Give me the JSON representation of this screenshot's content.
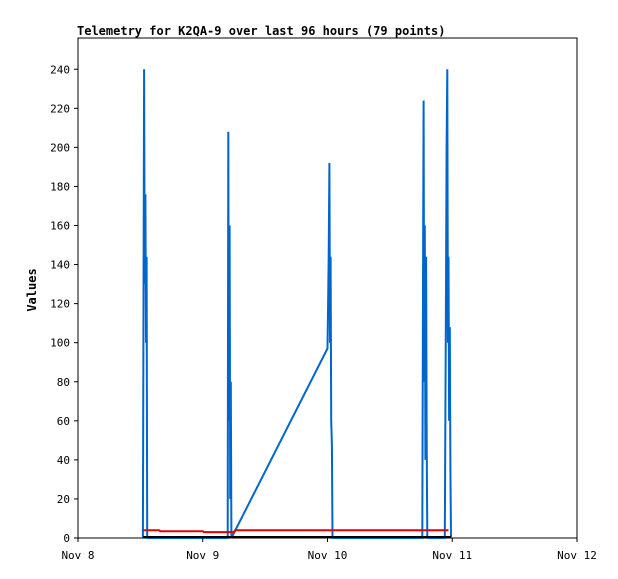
{
  "chart_data": {
    "type": "line",
    "title": "Telemetry for K2QA-9 over last 96 hours (79 points)",
    "xlabel": "",
    "ylabel": "Values",
    "x_ticks": [
      "Nov 8",
      "Nov 9",
      "Nov 10",
      "Nov 11",
      "Nov 12"
    ],
    "y_ticks": [
      0,
      20,
      40,
      60,
      80,
      100,
      120,
      140,
      160,
      180,
      200,
      220,
      240
    ],
    "xlim": [
      0,
      4
    ],
    "ylim": [
      0,
      256
    ],
    "grid": false,
    "legend": "none",
    "series": [
      {
        "color": "#0066cc",
        "points": [
          [
            0.52,
            0
          ],
          [
            0.525,
            120
          ],
          [
            0.53,
            240
          ],
          [
            0.535,
            130
          ],
          [
            0.54,
            176
          ],
          [
            0.545,
            100
          ],
          [
            0.55,
            144
          ],
          [
            0.555,
            0
          ],
          [
            1.2,
            0
          ],
          [
            1.205,
            208
          ],
          [
            1.21,
            60
          ],
          [
            1.215,
            160
          ],
          [
            1.22,
            20
          ],
          [
            1.225,
            80
          ],
          [
            1.23,
            0
          ],
          [
            2.0,
            97
          ],
          [
            2.005,
            120
          ],
          [
            2.01,
            144
          ],
          [
            2.015,
            192
          ],
          [
            2.02,
            100
          ],
          [
            2.025,
            144
          ],
          [
            2.03,
            60
          ],
          [
            2.035,
            48
          ],
          [
            2.04,
            0
          ],
          [
            2.76,
            0
          ],
          [
            2.765,
            110
          ],
          [
            2.77,
            224
          ],
          [
            2.775,
            80
          ],
          [
            2.78,
            160
          ],
          [
            2.785,
            40
          ],
          [
            2.79,
            144
          ],
          [
            2.795,
            48
          ],
          [
            2.8,
            0
          ],
          [
            2.94,
            0
          ],
          [
            2.945,
            64
          ],
          [
            2.95,
            128
          ],
          [
            2.955,
            200
          ],
          [
            2.96,
            240
          ],
          [
            2.965,
            100
          ],
          [
            2.97,
            144
          ],
          [
            2.975,
            60
          ],
          [
            2.98,
            108
          ],
          [
            2.985,
            36
          ],
          [
            2.99,
            0
          ]
        ]
      },
      {
        "color": "#dd0000",
        "points": [
          [
            0.52,
            4
          ],
          [
            0.65,
            4
          ],
          [
            0.66,
            3.5
          ],
          [
            1.0,
            3.5
          ],
          [
            1.01,
            3
          ],
          [
            1.25,
            3
          ],
          [
            1.26,
            4
          ],
          [
            2.0,
            4
          ],
          [
            2.5,
            4
          ],
          [
            2.97,
            4
          ]
        ]
      },
      {
        "color": "#000000",
        "points": [
          [
            0.52,
            0.5
          ],
          [
            1.2,
            0.5
          ],
          [
            2.0,
            0.5
          ],
          [
            2.99,
            0.5
          ]
        ]
      }
    ]
  }
}
